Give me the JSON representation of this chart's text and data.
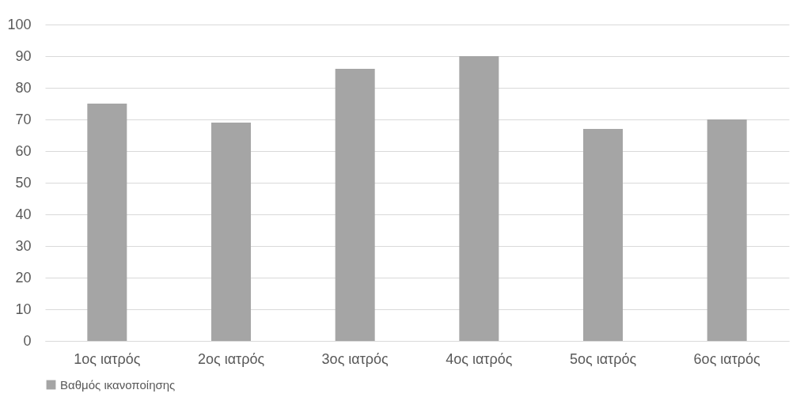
{
  "chart_data": {
    "type": "bar",
    "categories": [
      "1ος ιατρός",
      "2ος ιατρός",
      "3ος ιατρός",
      "4ος ιατρός",
      "5ος ιατρός",
      "6ος ιατρός"
    ],
    "series": [
      {
        "name": "Βαθμός ικανοποίησης",
        "color": "#a5a5a5",
        "values": [
          75,
          69,
          86,
          90,
          67,
          70
        ]
      }
    ],
    "ylim": [
      0,
      100
    ],
    "yticks": [
      0,
      10,
      20,
      30,
      40,
      50,
      60,
      70,
      80,
      90,
      100
    ],
    "grid": "y",
    "legend": "bottom"
  }
}
